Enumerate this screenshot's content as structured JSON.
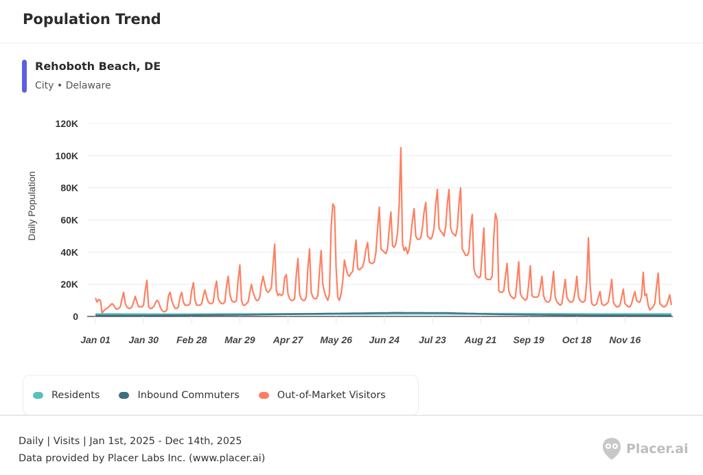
{
  "header": {
    "title": "Population Trend"
  },
  "location": {
    "name": "Rehoboth Beach, DE",
    "subtitle": "City • Delaware",
    "accent_color": "#5b5fe0"
  },
  "legend": [
    {
      "label": "Residents",
      "color": "#5bbfc0"
    },
    {
      "label": "Inbound Commuters",
      "color": "#3f6e80"
    },
    {
      "label": "Out-of-Market Visitors",
      "color": "#ff7f61"
    }
  ],
  "footer": {
    "line1": "Daily | Visits | Jan 1st, 2025 - Dec 14th, 2025",
    "line2": "Data provided by Placer Labs Inc. (www.placer.ai)",
    "logo_text": "Placer.ai"
  },
  "chart_data": {
    "type": "line",
    "title": "",
    "xlabel": "",
    "ylabel": "Daily Population",
    "ylim": [
      0,
      120000
    ],
    "yticks": [
      0,
      20000,
      40000,
      60000,
      80000,
      100000,
      120000
    ],
    "ytick_labels": [
      "0",
      "20K",
      "40K",
      "60K",
      "80K",
      "100K",
      "120K"
    ],
    "x_range": [
      "2025-01-01",
      "2025-12-14"
    ],
    "x_interval": "daily",
    "xtick_labels": [
      "Jan 01",
      "Jan 30",
      "Feb 28",
      "Mar 29",
      "Apr 27",
      "May 26",
      "Jun 24",
      "Jul 23",
      "Aug 21",
      "Sep 19",
      "Oct 18",
      "Nov 16"
    ],
    "xtick_dates": [
      "2025-01-01",
      "2025-01-30",
      "2025-02-28",
      "2025-03-29",
      "2025-04-27",
      "2025-05-26",
      "2025-06-24",
      "2025-07-23",
      "2025-08-21",
      "2025-09-19",
      "2025-10-18",
      "2025-11-16"
    ],
    "grid": true,
    "legend_position": "bottom-left",
    "value_unit": "thousands",
    "series": [
      {
        "name": "Residents",
        "color": "#5bbfc0",
        "points": [
          [
            "2025-01-01",
            1.4
          ],
          [
            "2025-02-01",
            1.3
          ],
          [
            "2025-03-01",
            1.3
          ],
          [
            "2025-04-01",
            1.4
          ],
          [
            "2025-05-01",
            1.5
          ],
          [
            "2025-06-01",
            1.6
          ],
          [
            "2025-07-01",
            1.7
          ],
          [
            "2025-08-01",
            1.7
          ],
          [
            "2025-09-01",
            1.6
          ],
          [
            "2025-10-01",
            1.5
          ],
          [
            "2025-11-01",
            1.4
          ],
          [
            "2025-12-14",
            1.4
          ]
        ]
      },
      {
        "name": "Inbound Commuters",
        "color": "#3f6e80",
        "points": [
          [
            "2025-01-01",
            0.6
          ],
          [
            "2025-02-01",
            0.6
          ],
          [
            "2025-03-01",
            0.8
          ],
          [
            "2025-04-01",
            1.0
          ],
          [
            "2025-05-01",
            1.5
          ],
          [
            "2025-06-01",
            1.9
          ],
          [
            "2025-07-01",
            2.3
          ],
          [
            "2025-08-01",
            2.2
          ],
          [
            "2025-09-01",
            1.3
          ],
          [
            "2025-10-01",
            0.9
          ],
          [
            "2025-11-01",
            0.7
          ],
          [
            "2025-12-14",
            0.6
          ]
        ]
      },
      {
        "name": "Out-of-Market Visitors",
        "color": "#ff7f61",
        "values": [
          11.5,
          9,
          10.5,
          10,
          2,
          3.5,
          4.5,
          5,
          6,
          7,
          8,
          7,
          5,
          4.5,
          5,
          6,
          11,
          15,
          8,
          6,
          5,
          5,
          6,
          9,
          12.5,
          9,
          6,
          6,
          6,
          7,
          16,
          22.5,
          6,
          5,
          5,
          6,
          8,
          10,
          9,
          6,
          4,
          3,
          3,
          4,
          13,
          15,
          10,
          7,
          5,
          5,
          6,
          12,
          15,
          9,
          7,
          7,
          7,
          8,
          16,
          21,
          10,
          7,
          7,
          7,
          8,
          13,
          16.5,
          12,
          9,
          8,
          8,
          9,
          17,
          22,
          11,
          9,
          8,
          8,
          9,
          19,
          25,
          14,
          10,
          9,
          9,
          10,
          23,
          32,
          10,
          7,
          7,
          8,
          9,
          15,
          20,
          15,
          12,
          10,
          10,
          12,
          20,
          25,
          20,
          16,
          15,
          16,
          18,
          32,
          45,
          16,
          13,
          14,
          13,
          14,
          24,
          26,
          14,
          11,
          10,
          10,
          11,
          26,
          36,
          14,
          11,
          10,
          10,
          12,
          30,
          42,
          15,
          12,
          11,
          11,
          13,
          28,
          41,
          20,
          15,
          12,
          10,
          14,
          55,
          70,
          68,
          30,
          12,
          10,
          14,
          22,
          35,
          30,
          26,
          25,
          27,
          28,
          38,
          47.5,
          30,
          29,
          30,
          31,
          35,
          42,
          46,
          34,
          33,
          33,
          34,
          40,
          55,
          68,
          42,
          41,
          40,
          39,
          42,
          55,
          65,
          44,
          43,
          45,
          52,
          70,
          105,
          45,
          41,
          43,
          39,
          42,
          50,
          60,
          67,
          50,
          48,
          48,
          49,
          55,
          65,
          71,
          50,
          49,
          48,
          50,
          55,
          70,
          79,
          55,
          53,
          52,
          50,
          56,
          70,
          79,
          55,
          52,
          51,
          50,
          55,
          70,
          80,
          42,
          40,
          38,
          38,
          40,
          55,
          63.5,
          30,
          26,
          25,
          24,
          25,
          40,
          55,
          24,
          23,
          23,
          23,
          25,
          50,
          64,
          60,
          16,
          15,
          15,
          16,
          25,
          33,
          16,
          13,
          12,
          11,
          12,
          22,
          34,
          14,
          12,
          11,
          10,
          11,
          20,
          31.5,
          13,
          12,
          12,
          12,
          13,
          18,
          25,
          13,
          10,
          9,
          9,
          10,
          18,
          28,
          12,
          9,
          8,
          7,
          8,
          15,
          23,
          12,
          10,
          9,
          9,
          10,
          16,
          25,
          12,
          10,
          9,
          9,
          10,
          22,
          49,
          20,
          8,
          7,
          7,
          8,
          12,
          15.5,
          8,
          7,
          7,
          8,
          9,
          15,
          23,
          9,
          7,
          6,
          6,
          7,
          12,
          17,
          8,
          7,
          6,
          6,
          8,
          12,
          15.5,
          10,
          9,
          9,
          12,
          27.5,
          13,
          14,
          7,
          4,
          5,
          6,
          8,
          18,
          27,
          8,
          7,
          6,
          6,
          7,
          10,
          13.5,
          7
        ]
      }
    ]
  }
}
